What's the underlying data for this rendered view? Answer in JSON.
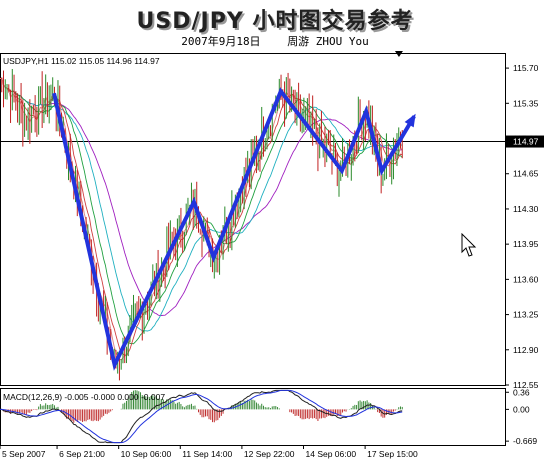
{
  "header": {
    "title": "USD/JPY 小时图交易参考",
    "date": "2007年9月18日",
    "author": "周游 ZHOU You"
  },
  "chart_data": [
    {
      "type": "candlestick",
      "symbol_info": "USDJPY,H1  115.02 115.05 114.96 114.97",
      "ylim": [
        112.55,
        115.85
      ],
      "y_ticks": [
        "115.70",
        "115.35",
        "115.00",
        "114.65",
        "114.30",
        "113.95",
        "113.60",
        "113.25",
        "112.90",
        "112.55"
      ],
      "y_tick_values": [
        115.7,
        115.35,
        115.0,
        114.65,
        114.3,
        113.95,
        113.6,
        113.25,
        112.9,
        112.55
      ],
      "current_price_label": "114.97",
      "current_price": 114.97,
      "x_tick_labels": [
        "5 Sep 2007",
        "6 Sep 21:00",
        "10 Sep 06:00",
        "11 Sep 14:00",
        "12 Sep 22:00",
        "14 Sep 06:00",
        "17 Sep 15:00"
      ],
      "x_tick_positions": [
        0,
        0.113,
        0.235,
        0.357,
        0.479,
        0.601,
        0.723
      ],
      "overlay_zigzag": {
        "color": "#2233dd",
        "points": [
          {
            "x": 0.107,
            "y": 115.45
          },
          {
            "x": 0.227,
            "y": 112.75
          },
          {
            "x": 0.384,
            "y": 114.37
          },
          {
            "x": 0.423,
            "y": 113.82
          },
          {
            "x": 0.556,
            "y": 115.47
          },
          {
            "x": 0.677,
            "y": 114.68
          },
          {
            "x": 0.725,
            "y": 115.27
          },
          {
            "x": 0.756,
            "y": 114.68
          },
          {
            "x": 0.82,
            "y": 115.22
          }
        ]
      },
      "moving_average_colors": [
        "#a020c0",
        "#20b0c0",
        "#20a040",
        "#d04040",
        "#e08080"
      ]
    },
    {
      "type": "bar",
      "title": "MACD(12,26,9) -0.005 -0.000 0.000 -0.007",
      "y_ticks": [
        "0.36",
        "0.00",
        "-0.669"
      ],
      "y_tick_values": [
        0.36,
        0.0,
        -0.669
      ],
      "ylim": [
        -0.75,
        0.45
      ]
    }
  ],
  "colors": {
    "background": "#ffffff",
    "grid_line": "#000000",
    "bull_candle": "#2a8a2a",
    "bear_candle": "#c02020",
    "zigzag": "#2233dd",
    "macd_line": "#222222",
    "signal_line": "#2233dd",
    "histogram_pos": "#3a8a3a",
    "histogram_neg": "#c03030"
  }
}
